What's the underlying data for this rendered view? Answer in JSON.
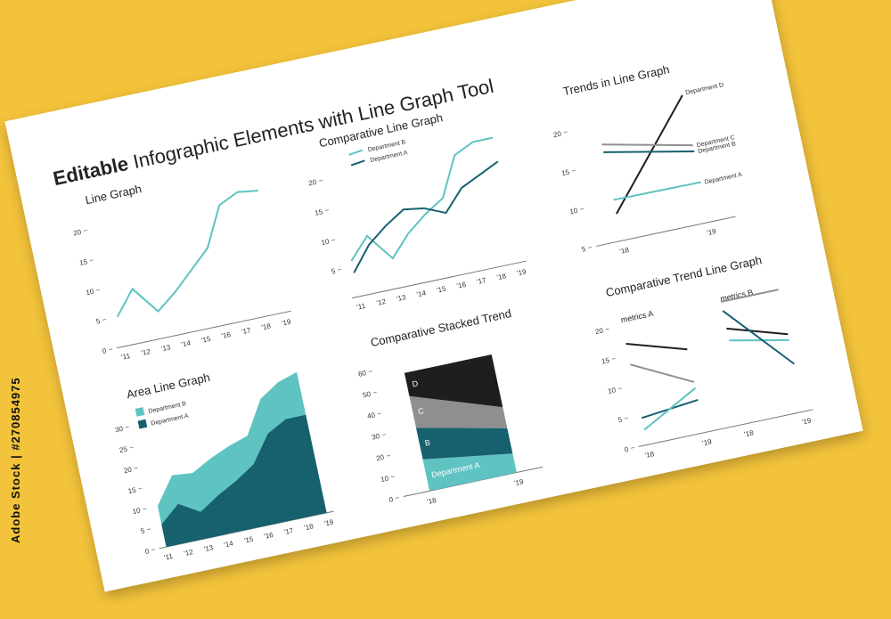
{
  "page": {
    "title_bold": "Editable",
    "title_rest": " Infographic Elements with Line Graph Tool",
    "side_label": "Adobe Stock | #270854975"
  },
  "colors": {
    "teal_light": "#5ec3c1",
    "teal_dark": "#17606e",
    "gray": "#8f8f8f",
    "black": "#1e1e1e",
    "axis": "#777777",
    "text": "#333333"
  },
  "chart_data": [
    {
      "id": "line-graph",
      "type": "line",
      "title": "Line Graph",
      "x": [
        "'11",
        "'12",
        "'13",
        "'14",
        "'15",
        "'16",
        "'17",
        "'18",
        "'19"
      ],
      "yticks": [
        0,
        5,
        10,
        15,
        20
      ],
      "ylim": [
        0,
        22
      ],
      "series": [
        {
          "name": "",
          "color": "teal_light",
          "values": [
            5,
            9,
            4.5,
            7,
            10,
            13,
            19.5,
            21,
            20.5
          ]
        }
      ]
    },
    {
      "id": "comparative-line-graph",
      "type": "line",
      "title": "Comparative Line Graph",
      "x": [
        "'11",
        "'12",
        "'13",
        "'14",
        "'15",
        "'16",
        "'17",
        "'18",
        "'19"
      ],
      "yticks": [
        5,
        10,
        15,
        20
      ],
      "ylim": [
        0,
        22
      ],
      "legend": "top-left",
      "series": [
        {
          "name": "Department B",
          "color": "teal_light",
          "values": [
            6,
            9.5,
            5,
            8.5,
            11,
            13,
            19.5,
            21,
            21
          ]
        },
        {
          "name": "Department A",
          "color": "teal_dark",
          "values": [
            4,
            8,
            10.5,
            12.5,
            12,
            10.5,
            14,
            15.5,
            17
          ]
        }
      ]
    },
    {
      "id": "trends-in-line-graph",
      "type": "line",
      "title": "Trends in Line Graph",
      "x": [
        "'18",
        "'19"
      ],
      "yticks": [
        5,
        10,
        15,
        20
      ],
      "ylim": [
        5,
        22
      ],
      "series": [
        {
          "name": "Department D",
          "color": "black",
          "values": [
            8.5,
            21.5
          ]
        },
        {
          "name": "Department C",
          "color": "gray",
          "values": [
            17.5,
            15
          ]
        },
        {
          "name": "Department B",
          "color": "teal_dark",
          "values": [
            16.5,
            14.2
          ]
        },
        {
          "name": "Department A",
          "color": "teal_light",
          "values": [
            10.3,
            10.2
          ]
        }
      ]
    },
    {
      "id": "area-line-graph",
      "type": "area",
      "title": "Area Line Graph",
      "x": [
        "'11",
        "'12",
        "'13",
        "'14",
        "'15",
        "'16",
        "'17",
        "'18",
        "'19"
      ],
      "yticks": [
        0,
        5,
        10,
        15,
        20,
        25,
        30
      ],
      "ylim": [
        0,
        32
      ],
      "legend": "top-left",
      "series": [
        {
          "name": "Department B",
          "color": "teal_light",
          "values": [
            10,
            16.5,
            16,
            18.5,
            20.5,
            22,
            30,
            33,
            34.5
          ]
        },
        {
          "name": "Department A",
          "color": "teal_dark",
          "values": [
            5.5,
            9.5,
            6.5,
            9.5,
            12,
            15,
            21.5,
            24,
            24
          ]
        }
      ]
    },
    {
      "id": "comparative-stacked-trend",
      "type": "area",
      "title": "Comparative Stacked Trend",
      "x": [
        "'18",
        "'19"
      ],
      "yticks": [
        0,
        10,
        20,
        30,
        40,
        50,
        60
      ],
      "ylim": [
        0,
        62
      ],
      "series": [
        {
          "name": "Department A",
          "color": "teal_light",
          "values": [
            15,
            9
          ]
        },
        {
          "name": "B",
          "color": "teal_dark",
          "values": [
            15,
            12
          ]
        },
        {
          "name": "C",
          "color": "gray",
          "values": [
            15,
            10
          ]
        },
        {
          "name": "D",
          "color": "black",
          "values": [
            11,
            25
          ]
        }
      ]
    },
    {
      "id": "comparative-trend-line-graph",
      "type": "line",
      "title": "Comparative Trend Line Graph",
      "yticks": [
        0,
        5,
        10,
        15,
        20
      ],
      "ylim": [
        0,
        22
      ],
      "groups": [
        {
          "label": "metrics A",
          "x": [
            "'18",
            "'19"
          ],
          "series": [
            {
              "color": "black",
              "values": [
                17,
                14
              ]
            },
            {
              "color": "gray",
              "values": [
                13.5,
                8.5
              ]
            },
            {
              "color": "teal_dark",
              "values": [
                4.5,
                5.5
              ]
            },
            {
              "color": "teal_light",
              "values": [
                2.5,
                7.5
              ]
            }
          ]
        },
        {
          "label": "metrics B",
          "x": [
            "'18",
            "'19"
          ],
          "series": [
            {
              "color": "gray",
              "values": [
                20.5,
                20.5
              ]
            },
            {
              "color": "black",
              "values": [
                16,
                13
              ]
            },
            {
              "color": "teal_light",
              "values": [
                14,
                12
              ]
            },
            {
              "color": "teal_dark",
              "values": [
                19,
                8
              ]
            }
          ]
        }
      ]
    }
  ]
}
